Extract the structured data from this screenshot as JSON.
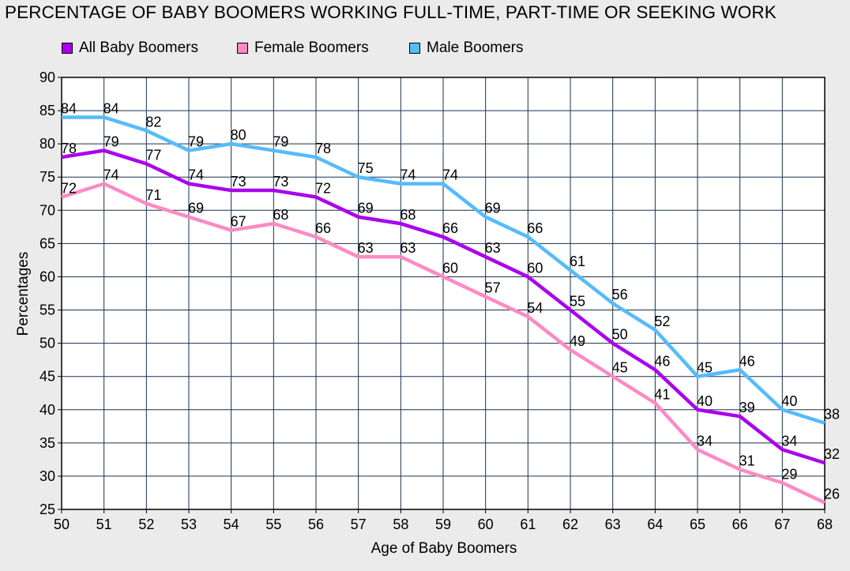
{
  "chart_data": {
    "type": "line",
    "title": "PERCENTAGE OF BABY BOOMERS WORKING FULL-TIME, PART-TIME OR SEEKING WORK",
    "xlabel": "Age of Baby Boomers",
    "ylabel": "Percentages",
    "x": [
      50,
      51,
      52,
      53,
      54,
      55,
      56,
      57,
      58,
      59,
      60,
      61,
      62,
      63,
      64,
      65,
      66,
      67,
      68
    ],
    "xlim": [
      50,
      68
    ],
    "ylim": [
      25,
      90
    ],
    "yticks": [
      25,
      30,
      35,
      40,
      45,
      50,
      55,
      60,
      65,
      70,
      75,
      80,
      85,
      90
    ],
    "grid": true,
    "legend_position": "top",
    "background_color": "#ebebeb",
    "plot_background_color": "#ffffff",
    "grid_color": "#1a3050",
    "series": [
      {
        "name": "All Baby Boomers",
        "color": "#aa00ee",
        "values": [
          78,
          79,
          77,
          74,
          73,
          73,
          72,
          69,
          68,
          66,
          63,
          60,
          55,
          50,
          46,
          40,
          39,
          34,
          32
        ]
      },
      {
        "name": "Female Boomers",
        "color": "#ff8ac4",
        "values": [
          72,
          74,
          71,
          69,
          67,
          68,
          66,
          63,
          63,
          60,
          57,
          54,
          49,
          45,
          41,
          34,
          31,
          29,
          26
        ]
      },
      {
        "name": "Male Boomers",
        "color": "#55bbff",
        "values": [
          84,
          84,
          82,
          79,
          80,
          79,
          78,
          75,
          74,
          74,
          69,
          66,
          61,
          56,
          52,
          45,
          46,
          40,
          38
        ]
      }
    ]
  }
}
